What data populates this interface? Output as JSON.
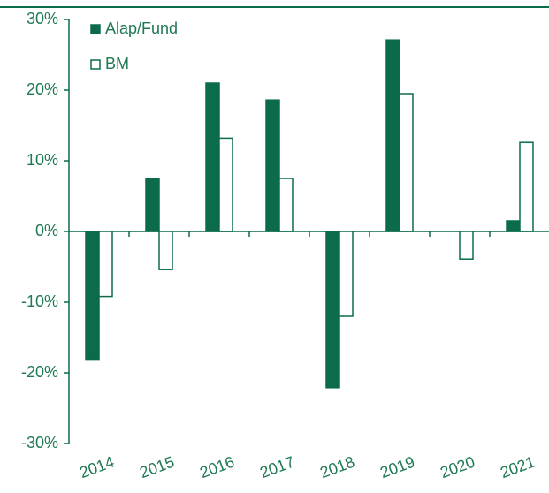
{
  "chart_data": {
    "type": "bar",
    "categories": [
      "2014",
      "2015",
      "2016",
      "2017",
      "2018",
      "2019",
      "2020",
      "2021"
    ],
    "series": [
      {
        "name": "Alap/Fund",
        "color": "#0b6b4b",
        "fill": "#0b6b4b",
        "values": [
          -18.2,
          7.5,
          21,
          18.6,
          -22.1,
          27.1,
          null,
          1.5
        ]
      },
      {
        "name": "BM",
        "color": "#0b6b4b",
        "fill": "#ffffff",
        "values": [
          -9.2,
          -5.4,
          13.2,
          7.5,
          -12.0,
          19.5,
          -3.9,
          12.6
        ]
      }
    ],
    "ylim": [
      -30,
      30
    ],
    "yticks": [
      {
        "value": -30,
        "label": "-30%"
      },
      {
        "value": -20,
        "label": "-20%"
      },
      {
        "value": -10,
        "label": "-10%"
      },
      {
        "value": 0,
        "label": "0%"
      },
      {
        "value": 10,
        "label": "10%"
      },
      {
        "value": 20,
        "label": "20%"
      },
      {
        "value": 30,
        "label": "30%"
      }
    ],
    "legend": "upper left"
  }
}
